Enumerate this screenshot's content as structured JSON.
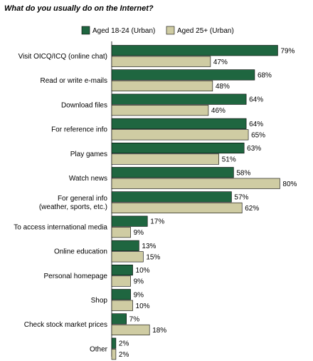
{
  "chart_data": {
    "type": "bar",
    "orientation": "horizontal",
    "title": "What do you usually do on the Internet?",
    "xlabel": "",
    "ylabel": "",
    "xlim": [
      0,
      100
    ],
    "grid": false,
    "legend_position": "top",
    "value_suffix": "%",
    "categories": [
      [
        "Visit OICQ/ICQ (online chat)"
      ],
      [
        "Read or write e-mails"
      ],
      [
        "Download files"
      ],
      [
        "For reference info"
      ],
      [
        "Play games"
      ],
      [
        "Watch news"
      ],
      [
        "For general info",
        "(weather, sports, etc.)"
      ],
      [
        "To access international media"
      ],
      [
        "Online education"
      ],
      [
        "Personal homepage"
      ],
      [
        "Shop"
      ],
      [
        "Check stock market prices"
      ],
      [
        "Other"
      ]
    ],
    "series": [
      {
        "name": "Aged 18-24 (Urban)",
        "color": "#1f6640",
        "values": [
          79,
          68,
          64,
          64,
          63,
          58,
          57,
          17,
          13,
          10,
          9,
          7,
          2
        ]
      },
      {
        "name": "Aged 25+ (Urban)",
        "color": "#cfcca3",
        "values": [
          47,
          48,
          46,
          65,
          51,
          80,
          62,
          9,
          15,
          9,
          10,
          18,
          2
        ]
      }
    ]
  }
}
